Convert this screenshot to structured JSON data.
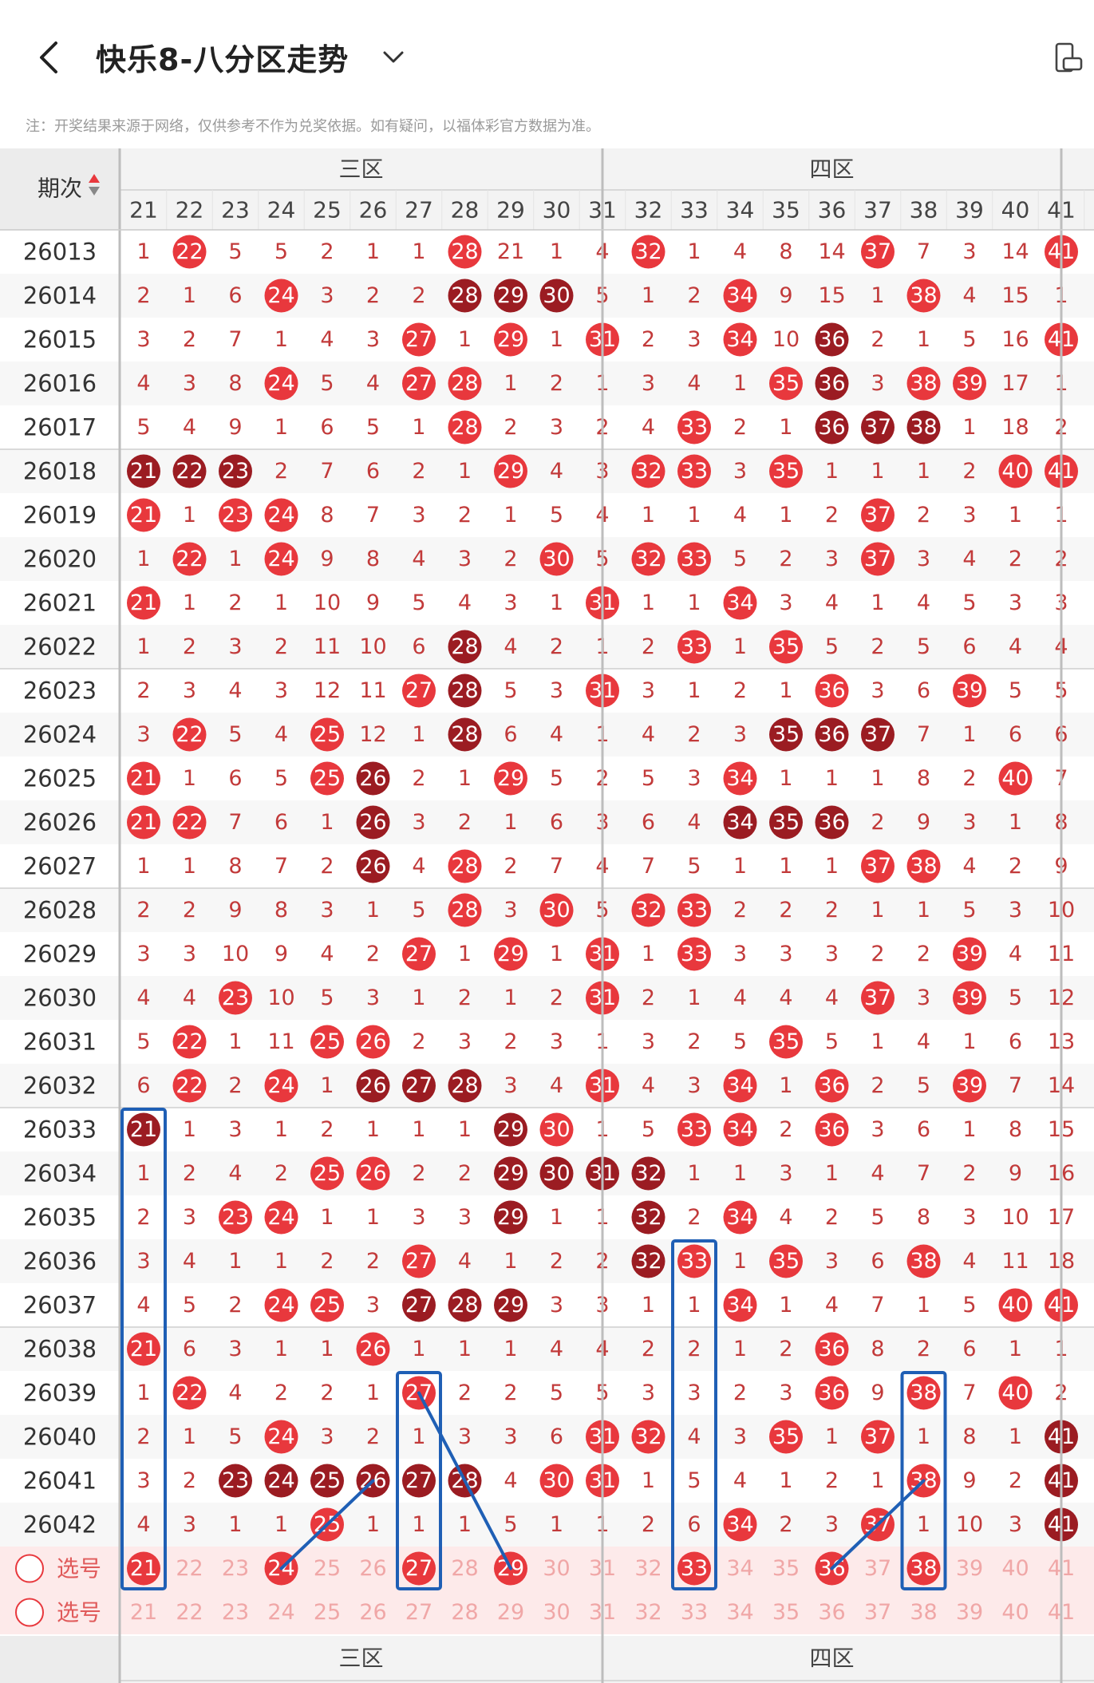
{
  "header": {
    "title": "快乐8-八分区走势"
  },
  "notice": "注：开奖结果来源于网络，仅供参考不作为兑奖依据。如有疑问，以福体彩官方数据为准。",
  "table": {
    "issue_header": "期次",
    "zones": [
      {
        "label": "三区",
        "start": 21,
        "end": 30
      },
      {
        "label": "四区",
        "start": 31,
        "end": 40
      }
    ],
    "columns": [
      21,
      22,
      23,
      24,
      25,
      26,
      27,
      28,
      29,
      30,
      31,
      32,
      33,
      34,
      35,
      36,
      37,
      38,
      39,
      40,
      41
    ],
    "rows": [
      {
        "issue": "26013",
        "cells": [
          1,
          "h",
          5,
          5,
          2,
          1,
          1,
          "h",
          21,
          1,
          4,
          "h",
          1,
          4,
          8,
          14,
          "h",
          7,
          3,
          14,
          "h"
        ]
      },
      {
        "issue": "26014",
        "cells": [
          2,
          1,
          6,
          "h",
          3,
          2,
          2,
          "H",
          "H",
          "H",
          5,
          1,
          2,
          "h",
          9,
          15,
          1,
          "h",
          4,
          15,
          1
        ]
      },
      {
        "issue": "26015",
        "cells": [
          3,
          2,
          7,
          1,
          4,
          3,
          "h",
          1,
          "h",
          1,
          "h",
          2,
          3,
          "h",
          10,
          "H",
          2,
          1,
          5,
          16,
          "h"
        ]
      },
      {
        "issue": "26016",
        "cells": [
          4,
          3,
          8,
          "h",
          5,
          4,
          "h",
          "h",
          1,
          2,
          1,
          3,
          4,
          1,
          "h",
          "H",
          3,
          "h",
          "h",
          17,
          1
        ]
      },
      {
        "issue": "26017",
        "cells": [
          5,
          4,
          9,
          1,
          6,
          5,
          1,
          "h",
          2,
          3,
          2,
          4,
          "h",
          2,
          1,
          "H",
          "H",
          "H",
          1,
          18,
          2
        ]
      },
      {
        "issue": "26018",
        "cells": [
          "H",
          "H",
          "H",
          2,
          7,
          6,
          2,
          1,
          "h",
          4,
          3,
          "h",
          "h",
          3,
          "h",
          1,
          1,
          1,
          2,
          "h",
          "h"
        ]
      },
      {
        "issue": "26019",
        "cells": [
          "h",
          1,
          "h",
          "h",
          8,
          7,
          3,
          2,
          1,
          5,
          4,
          1,
          1,
          4,
          1,
          2,
          "h",
          2,
          3,
          1,
          1
        ]
      },
      {
        "issue": "26020",
        "cells": [
          1,
          "h",
          1,
          "h",
          9,
          8,
          4,
          3,
          2,
          "h",
          5,
          "h",
          "h",
          5,
          2,
          3,
          "h",
          3,
          4,
          2,
          2
        ]
      },
      {
        "issue": "26021",
        "cells": [
          "h",
          1,
          2,
          1,
          10,
          9,
          5,
          4,
          3,
          1,
          "h",
          1,
          1,
          "h",
          3,
          4,
          1,
          4,
          5,
          3,
          3
        ]
      },
      {
        "issue": "26022",
        "cells": [
          1,
          2,
          3,
          2,
          11,
          10,
          6,
          "H",
          4,
          2,
          1,
          2,
          "h",
          1,
          "h",
          5,
          2,
          5,
          6,
          4,
          4
        ]
      },
      {
        "issue": "26023",
        "cells": [
          2,
          3,
          4,
          3,
          12,
          11,
          "h",
          "H",
          5,
          3,
          "h",
          3,
          1,
          2,
          1,
          "h",
          3,
          6,
          "h",
          5,
          5
        ]
      },
      {
        "issue": "26024",
        "cells": [
          3,
          "h",
          5,
          4,
          "h",
          12,
          1,
          "H",
          6,
          4,
          1,
          4,
          2,
          3,
          "H",
          "H",
          "H",
          7,
          1,
          6,
          6
        ]
      },
      {
        "issue": "26025",
        "cells": [
          "h",
          1,
          6,
          5,
          "h",
          "H",
          2,
          1,
          "h",
          5,
          2,
          5,
          3,
          "h",
          1,
          1,
          1,
          8,
          2,
          "h",
          7
        ]
      },
      {
        "issue": "26026",
        "cells": [
          "h",
          "h",
          7,
          6,
          1,
          "H",
          3,
          2,
          1,
          6,
          3,
          6,
          4,
          "H",
          "H",
          "H",
          2,
          9,
          3,
          1,
          8
        ]
      },
      {
        "issue": "26027",
        "cells": [
          1,
          1,
          8,
          7,
          2,
          "H",
          4,
          "h",
          2,
          7,
          4,
          7,
          5,
          1,
          1,
          1,
          "h",
          "h",
          4,
          2,
          9
        ]
      },
      {
        "issue": "26028",
        "cells": [
          2,
          2,
          9,
          8,
          3,
          1,
          5,
          "h",
          3,
          "h",
          5,
          "h",
          "h",
          2,
          2,
          2,
          1,
          1,
          5,
          3,
          10
        ]
      },
      {
        "issue": "26029",
        "cells": [
          3,
          3,
          10,
          9,
          4,
          2,
          "h",
          1,
          "h",
          1,
          "h",
          1,
          "h",
          3,
          3,
          3,
          2,
          2,
          "h",
          4,
          11
        ]
      },
      {
        "issue": "26030",
        "cells": [
          4,
          4,
          "h",
          10,
          5,
          3,
          1,
          2,
          1,
          2,
          "h",
          2,
          1,
          4,
          4,
          4,
          "h",
          3,
          "h",
          5,
          12
        ]
      },
      {
        "issue": "26031",
        "cells": [
          5,
          "h",
          1,
          11,
          "h",
          "h",
          2,
          3,
          2,
          3,
          1,
          3,
          2,
          5,
          "h",
          5,
          1,
          4,
          1,
          6,
          13
        ]
      },
      {
        "issue": "26032",
        "cells": [
          6,
          "h",
          2,
          "h",
          1,
          "H",
          "H",
          "H",
          3,
          4,
          "h",
          4,
          3,
          "h",
          1,
          "h",
          2,
          5,
          "h",
          7,
          14
        ]
      },
      {
        "issue": "26033",
        "cells": [
          "H",
          1,
          3,
          1,
          2,
          1,
          1,
          1,
          "H",
          "h",
          1,
          5,
          "h",
          "h",
          2,
          "h",
          3,
          6,
          1,
          8,
          15
        ]
      },
      {
        "issue": "26034",
        "cells": [
          1,
          2,
          4,
          2,
          "h",
          "h",
          2,
          2,
          "H",
          "H",
          "H",
          "H",
          1,
          1,
          3,
          1,
          4,
          7,
          2,
          9,
          16
        ]
      },
      {
        "issue": "26035",
        "cells": [
          2,
          3,
          "h",
          "h",
          1,
          1,
          3,
          3,
          "H",
          1,
          1,
          "H",
          2,
          "h",
          4,
          2,
          5,
          8,
          3,
          10,
          17
        ]
      },
      {
        "issue": "26036",
        "cells": [
          3,
          4,
          1,
          1,
          2,
          2,
          "h",
          4,
          1,
          2,
          2,
          "H",
          "h",
          1,
          "h",
          3,
          6,
          "h",
          4,
          11,
          18
        ]
      },
      {
        "issue": "26037",
        "cells": [
          4,
          5,
          2,
          "h",
          "h",
          3,
          "H",
          "H",
          "H",
          3,
          3,
          1,
          1,
          "h",
          1,
          4,
          7,
          1,
          5,
          "h",
          "h"
        ]
      },
      {
        "issue": "26038",
        "cells": [
          "h",
          6,
          3,
          1,
          1,
          "h",
          1,
          1,
          1,
          4,
          4,
          2,
          2,
          1,
          2,
          "h",
          8,
          2,
          6,
          1,
          1
        ]
      },
      {
        "issue": "26039",
        "cells": [
          1,
          "h",
          4,
          2,
          2,
          1,
          "h",
          2,
          2,
          5,
          5,
          3,
          3,
          2,
          3,
          "h",
          9,
          "h",
          7,
          "h",
          2
        ]
      },
      {
        "issue": "26040",
        "cells": [
          2,
          1,
          5,
          "h",
          3,
          2,
          1,
          3,
          3,
          6,
          "h",
          "h",
          4,
          3,
          "h",
          1,
          "h",
          1,
          8,
          1,
          "H"
        ]
      },
      {
        "issue": "26041",
        "cells": [
          3,
          2,
          "H",
          "H",
          "H",
          "H",
          "H",
          "H",
          4,
          "h",
          "h",
          1,
          5,
          4,
          1,
          2,
          1,
          "h",
          9,
          2,
          "H"
        ]
      },
      {
        "issue": "26042",
        "cells": [
          4,
          3,
          1,
          1,
          "h",
          1,
          1,
          1,
          5,
          1,
          1,
          2,
          6,
          "h",
          2,
          3,
          "h",
          1,
          10,
          3,
          "H"
        ]
      }
    ],
    "select_label": "选号",
    "select_row1_picked": [
      21,
      24,
      27,
      29,
      33,
      36,
      38
    ],
    "select_row2_picked": [],
    "footer_issue": "-",
    "highlight_color": "#e8383d",
    "dark_color": "#9b1c22",
    "text_color": "#c23a3a"
  }
}
